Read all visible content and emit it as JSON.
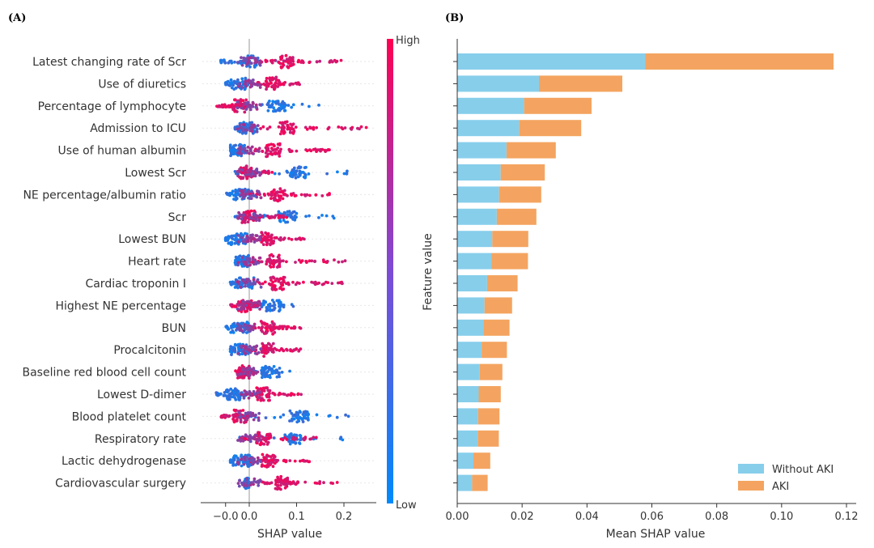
{
  "panels": {
    "a_label": "(A)",
    "b_label": "(B)"
  },
  "features": [
    "Latest changing rate of Scr",
    "Use of diuretics",
    "Percentage of lymphocyte",
    "Admission to ICU",
    "Use of human albumin",
    "Lowest Scr",
    "NE percentage/albumin ratio",
    "Scr",
    "Lowest BUN",
    "Heart rate",
    "Cardiac troponin I",
    "Highest NE percentage",
    "BUN",
    "Procalcitonin",
    "Baseline red blood cell count",
    "Lowest D-dimer",
    "Blood platelet count",
    "Respiratory rate",
    "Lactic dehydrogenase",
    "Cardiovascular surgery"
  ],
  "colors": {
    "low": "#008afb",
    "high": "#ff0052",
    "without_aki": "#87ceeb",
    "aki": "#f4a460"
  },
  "chart_data": [
    {
      "type": "scatter",
      "variant": "shap-beeswarm",
      "title": "",
      "xlabel": "SHAP value",
      "ylabel": "",
      "xlim": [
        -0.09,
        0.27
      ],
      "xticks": [
        "−0.0",
        "0.0",
        "0.1",
        "0.2"
      ],
      "xtick_values": [
        -0.05,
        0.0,
        0.1,
        0.2
      ],
      "colorbar": {
        "high_label": "High",
        "low_label": "Low"
      },
      "grid": false,
      "feature_ranges": [
        {
          "low_min": -0.06,
          "low_max": 0.06,
          "high_min": 0.02,
          "high_max": 0.21,
          "high_mode": 0.08
        },
        {
          "low_min": -0.05,
          "low_max": 0.0,
          "high_min": 0.0,
          "high_max": 0.11,
          "high_mode": 0.05
        },
        {
          "low_min": -0.04,
          "low_max": 0.16,
          "high_min": -0.07,
          "high_max": 0.0,
          "high_mode": -0.02
        },
        {
          "low_min": -0.03,
          "low_max": 0.02,
          "high_min": 0.02,
          "high_max": 0.25,
          "high_mode": 0.08
        },
        {
          "low_min": -0.04,
          "low_max": -0.01,
          "high_min": 0.0,
          "high_max": 0.17,
          "high_mode": 0.05
        },
        {
          "low_min": -0.03,
          "low_max": 0.23,
          "high_min": -0.02,
          "high_max": 0.05,
          "high_mode": -0.01
        },
        {
          "low_min": -0.05,
          "low_max": 0.02,
          "high_min": 0.0,
          "high_max": 0.17,
          "high_mode": 0.06
        },
        {
          "low_min": -0.03,
          "low_max": 0.19,
          "high_min": -0.02,
          "high_max": 0.08,
          "high_mode": 0.0
        },
        {
          "low_min": -0.05,
          "low_max": 0.0,
          "high_min": 0.0,
          "high_max": 0.12,
          "high_mode": 0.04
        },
        {
          "low_min": -0.03,
          "low_max": 0.0,
          "high_min": 0.0,
          "high_max": 0.21,
          "high_mode": 0.05
        },
        {
          "low_min": -0.04,
          "low_max": 0.02,
          "high_min": 0.02,
          "high_max": 0.2,
          "high_mode": 0.06
        },
        {
          "low_min": 0.0,
          "low_max": 0.1,
          "high_min": -0.04,
          "high_max": 0.02,
          "high_mode": -0.01
        },
        {
          "low_min": -0.05,
          "low_max": 0.01,
          "high_min": 0.0,
          "high_max": 0.11,
          "high_mode": 0.04
        },
        {
          "low_min": -0.04,
          "low_max": 0.0,
          "high_min": 0.0,
          "high_max": 0.11,
          "high_mode": 0.04
        },
        {
          "low_min": 0.0,
          "low_max": 0.09,
          "high_min": -0.03,
          "high_max": 0.01,
          "high_mode": -0.01
        },
        {
          "low_min": -0.07,
          "low_max": 0.0,
          "high_min": 0.0,
          "high_max": 0.11,
          "high_mode": 0.03
        },
        {
          "low_min": 0.0,
          "low_max": 0.21,
          "high_min": -0.06,
          "high_max": 0.0,
          "high_mode": -0.02
        },
        {
          "low_min": -0.02,
          "low_max": 0.2,
          "high_min": -0.02,
          "high_max": 0.15,
          "high_mode": 0.03
        },
        {
          "low_min": -0.04,
          "low_max": 0.01,
          "high_min": 0.0,
          "high_max": 0.13,
          "high_mode": 0.04
        },
        {
          "low_min": -0.01,
          "low_max": 0.0,
          "high_min": 0.02,
          "high_max": 0.19,
          "high_mode": 0.07
        }
      ]
    },
    {
      "type": "bar",
      "orientation": "horizontal",
      "stacked": true,
      "title": "",
      "xlabel": "Mean SHAP value",
      "ylabel": "Feature value",
      "xlim": [
        0.0,
        0.12
      ],
      "xticks": [
        "0.00",
        "0.02",
        "0.04",
        "0.06",
        "0.08",
        "0.10",
        "0.12"
      ],
      "xtick_values": [
        0.0,
        0.02,
        0.04,
        0.06,
        0.08,
        0.1,
        0.12
      ],
      "legend_position": "bottom-right",
      "grid": false,
      "series": [
        {
          "name": "Without AKI",
          "values": [
            0.058,
            0.0252,
            0.0206,
            0.0191,
            0.0152,
            0.0134,
            0.0129,
            0.0122,
            0.0108,
            0.0106,
            0.0092,
            0.0084,
            0.008,
            0.0075,
            0.0069,
            0.0066,
            0.0064,
            0.0063,
            0.005,
            0.0046
          ]
        },
        {
          "name": "AKI",
          "values": [
            0.058,
            0.0257,
            0.0208,
            0.0191,
            0.0152,
            0.0136,
            0.013,
            0.0122,
            0.0111,
            0.0112,
            0.0094,
            0.0085,
            0.0081,
            0.0078,
            0.007,
            0.0068,
            0.0066,
            0.0065,
            0.0052,
            0.0048
          ]
        }
      ]
    }
  ]
}
